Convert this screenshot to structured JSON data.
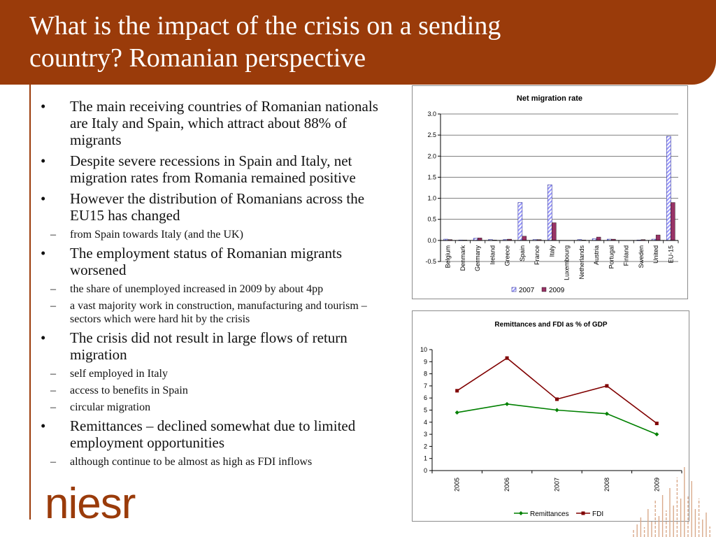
{
  "title": {
    "line1": "What is the impact of the crisis on a sending",
    "line2": "country? Romanian perspective"
  },
  "bullets": [
    {
      "level": 1,
      "text": "The main receiving countries of Romanian nationals are Italy and Spain, which attract about 88% of migrants"
    },
    {
      "level": 1,
      "text": "Despite severe recessions in Spain and Italy, net migration rates from Romania remained positive"
    },
    {
      "level": 1,
      "text": "However the distribution of Romanians across the EU15 has changed"
    },
    {
      "level": 2,
      "text": "from Spain towards Italy (and the UK)"
    },
    {
      "level": 1,
      "text": "The employment status of Romanian migrants worsened"
    },
    {
      "level": 2,
      "text": "the share of unemployed increased in 2009 by about 4pp"
    },
    {
      "level": 2,
      "text": "a vast majority work in construction, manufacturing and tourism – sectors which were hard hit by the crisis"
    },
    {
      "level": 1,
      "text": "The crisis did not result in large flows of return migration"
    },
    {
      "level": 2,
      "text": "self employed in Italy"
    },
    {
      "level": 2,
      "text": "access to benefits in Spain"
    },
    {
      "level": 2,
      "text": "circular migration"
    },
    {
      "level": 1,
      "text": "Remittances – declined somewhat due to limited employment opportunities"
    },
    {
      "level": 2,
      "text": "although continue to be almost as high as FDI inflows"
    }
  ],
  "bullet_marks": {
    "level1": "•",
    "level2": "–"
  },
  "logo": {
    "text": "niesr"
  },
  "colors": {
    "brand": "#9a3b0a",
    "series_2007": "#9999ff",
    "series_2009": "#993366",
    "fdi": "#800000",
    "remittances": "#008000"
  },
  "chart_data": [
    {
      "type": "bar",
      "title": "Net migration rate",
      "categories": [
        "Belgium",
        "Denmark",
        "Germany",
        "Ireland",
        "Greece",
        "Spain",
        "France",
        "Italy",
        "Luxembourg",
        "Netherlands",
        "Austria",
        "Portugal",
        "Finland",
        "Sweden",
        "United",
        "EU-15"
      ],
      "series": [
        {
          "name": "2007",
          "values": [
            0.03,
            0.01,
            0.05,
            0.02,
            0.02,
            0.9,
            0.02,
            1.32,
            0.0,
            0.02,
            0.04,
            0.03,
            0.0,
            0.01,
            0.03,
            2.47
          ]
        },
        {
          "name": "2009",
          "values": [
            0.02,
            0.01,
            0.06,
            0.01,
            0.03,
            0.1,
            0.02,
            0.42,
            0.0,
            0.01,
            0.08,
            0.03,
            0.0,
            0.02,
            0.13,
            0.9
          ]
        }
      ],
      "yticks": [
        "3.0",
        "2.5",
        "2.0",
        "1.5",
        "1.0",
        "0.5",
        "0.0",
        "-0.5"
      ],
      "ylim": [
        -0.5,
        3.0
      ],
      "legend": "bottom",
      "grid": true
    },
    {
      "type": "line",
      "title": "Remittances and FDI as % of GDP",
      "x": [
        "2005",
        "2006",
        "2007",
        "2008",
        "2009"
      ],
      "series": [
        {
          "name": "Remittances",
          "values": [
            4.8,
            5.5,
            5.0,
            4.7,
            3.0
          ]
        },
        {
          "name": "FDI",
          "values": [
            6.6,
            9.3,
            5.9,
            7.0,
            3.9
          ]
        }
      ],
      "yticks": [
        "10",
        "9",
        "8",
        "7",
        "6",
        "5",
        "4",
        "3",
        "2",
        "1",
        "0"
      ],
      "ylim": [
        0,
        10
      ],
      "legend": "bottom",
      "grid": false
    }
  ]
}
